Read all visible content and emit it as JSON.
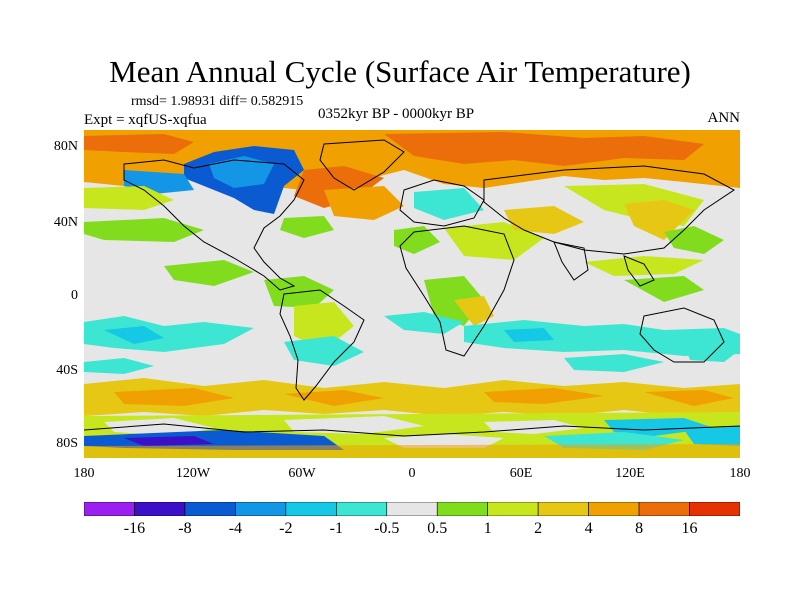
{
  "title": "Mean Annual Cycle (Surface Air Temperature)",
  "stats": "rmsd= 1.98931 diff= 0.582915",
  "experiment": "Expt = xqfUS-xqfua",
  "period": "0352kyr BP - 0000kyr BP",
  "season": "ANN",
  "lat_labels": [
    "80N",
    "40N",
    "0",
    "40S",
    "80S"
  ],
  "lon_labels": [
    "180",
    "120W",
    "60W",
    "0",
    "60E",
    "120E",
    "180"
  ],
  "colorbar": {
    "labels": [
      "-16",
      "-8",
      "-4",
      "-2",
      "-1",
      "-0.5",
      "0.5",
      "1",
      "2",
      "4",
      "8",
      "16"
    ],
    "colors": [
      "#9b1ff0",
      "#3c10c8",
      "#0a5ad2",
      "#1496e6",
      "#14c8e6",
      "#3ce6d2",
      "#e6e6e6",
      "#82dc1e",
      "#c8e61e",
      "#e6c814",
      "#f0a000",
      "#ec6e0a",
      "#e63200"
    ]
  }
}
